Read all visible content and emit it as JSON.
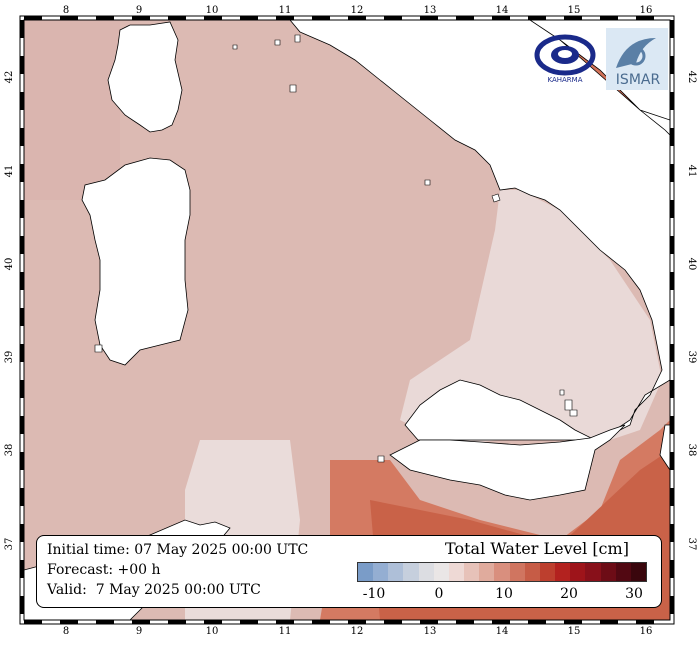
{
  "map": {
    "lon_ticks": [
      "8",
      "9",
      "10",
      "11",
      "12",
      "13",
      "14",
      "15",
      "16"
    ],
    "lat_ticks": [
      "42",
      "41",
      "40",
      "39",
      "38",
      "37"
    ]
  },
  "info": {
    "initial_time": "Initial time: 07 May 2025 00:00 UTC",
    "forecast": "Forecast: +00 h",
    "valid": "Valid:  7 May 2025 00:00 UTC"
  },
  "colorbar": {
    "title": "Total Water Level [cm]",
    "tick_labels": [
      "-10",
      "0",
      "10",
      "20",
      "30"
    ],
    "colors": [
      "#7a9cc8",
      "#94aed2",
      "#aebfd8",
      "#c6cfdd",
      "#dcdde2",
      "#eae6e6",
      "#eed9d5",
      "#e7c2b9",
      "#e0ab9d",
      "#d98f7e",
      "#d07560",
      "#c65c46",
      "#bd3f2e",
      "#b3221f",
      "#9e141a",
      "#88101a",
      "#6d0c16",
      "#520812",
      "#3a060d"
    ]
  },
  "logos": {
    "left": "KAHARMA",
    "right": "ISMAR"
  },
  "colors": {
    "sea_main": "#dcbab3",
    "sea_light": "#e9d9d7",
    "sea_warm": "#d47a62",
    "land": "#ffffff"
  }
}
